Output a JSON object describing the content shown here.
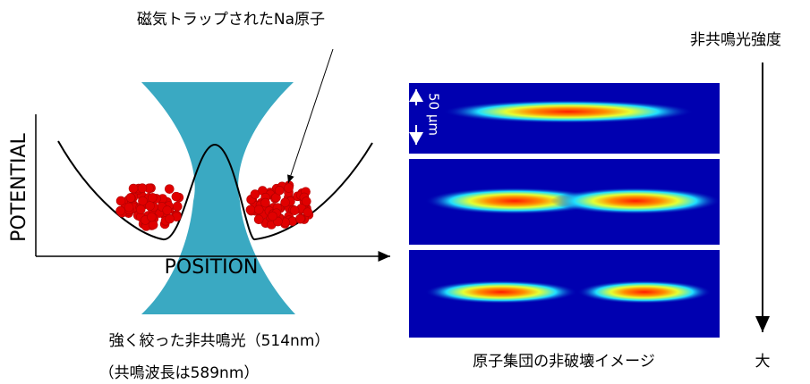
{
  "trap_label": "磁気トラップされたNa原子",
  "y_axis_label": "POTENTIAL",
  "x_axis_label": "POSITION",
  "beam_label": "強く絞った非共鳴光（514nm）",
  "resonance_note": "（共鳴波長は589nm）",
  "scale_bar": "50 μm",
  "image_caption": "原子集団の非破壊イメージ",
  "intensity_label": "非共鳴光強度",
  "intensity_high": "大"
}
